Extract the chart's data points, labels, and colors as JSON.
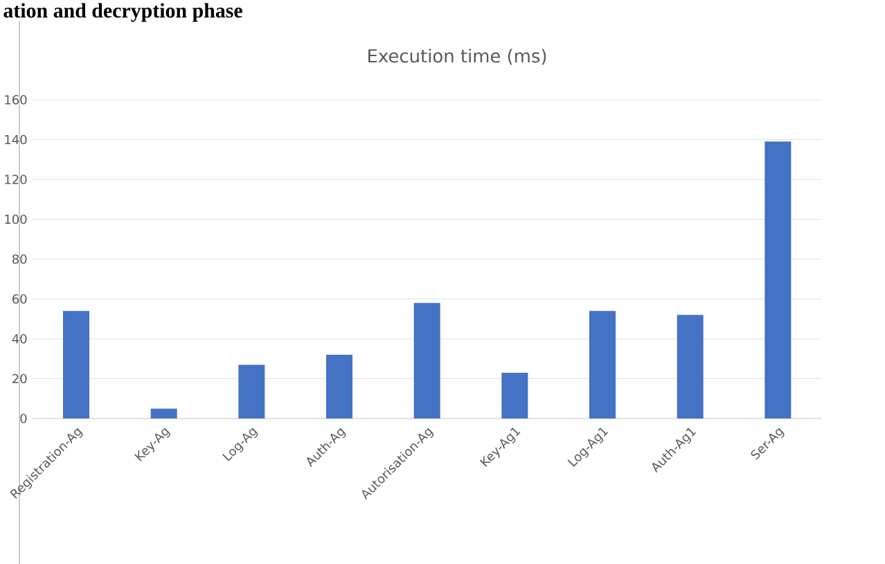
{
  "chart_data": {
    "type": "bar",
    "title": "Execution time (ms)",
    "annotations": [
      "ation and decryption phase"
    ],
    "categories": [
      "Registration-Ag",
      "Key-Ag",
      "Log-Ag",
      "Auth-Ag",
      "Autorisation-Ag",
      "Key-Ag1",
      "Log-Ag1",
      "Auth-Ag1",
      "Ser-Ag"
    ],
    "values": [
      54,
      5,
      27,
      32,
      58,
      23,
      54,
      52,
      139
    ],
    "color": "#4472c4",
    "ylim": [
      0,
      160
    ],
    "yticks": [
      0,
      20,
      40,
      60,
      80,
      100,
      120,
      140,
      160
    ],
    "grid": "y"
  }
}
